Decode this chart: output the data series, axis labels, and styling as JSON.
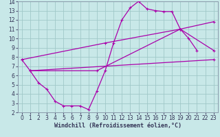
{
  "xlabel": "Windchill (Refroidissement éolien,°C)",
  "xlim": [
    -0.5,
    23.5
  ],
  "ylim": [
    2,
    14
  ],
  "xticks": [
    0,
    1,
    2,
    3,
    4,
    5,
    6,
    7,
    8,
    9,
    10,
    11,
    12,
    13,
    14,
    15,
    16,
    17,
    18,
    19,
    20,
    21,
    22,
    23
  ],
  "yticks": [
    2,
    3,
    4,
    5,
    6,
    7,
    8,
    9,
    10,
    11,
    12,
    13,
    14
  ],
  "bg_color": "#c8e8e8",
  "grid_color": "#a0c8c8",
  "line_color": "#aa00aa",
  "line1_x": [
    0,
    1,
    2,
    3,
    4,
    5,
    6,
    7,
    8,
    9,
    10,
    11,
    12,
    13,
    14,
    15,
    16,
    17,
    18,
    19,
    20,
    21
  ],
  "line1_y": [
    7.7,
    6.5,
    5.2,
    4.5,
    3.2,
    2.7,
    2.7,
    2.7,
    2.3,
    4.3,
    6.5,
    9.5,
    12.0,
    13.3,
    14.0,
    13.2,
    13.0,
    12.9,
    12.9,
    11.0,
    10.0,
    8.7
  ],
  "line2_x": [
    0,
    10,
    19,
    23
  ],
  "line2_y": [
    7.7,
    9.5,
    11.0,
    8.7
  ],
  "line3_x": [
    1,
    23
  ],
  "line3_y": [
    6.5,
    7.7
  ],
  "line4_x": [
    1,
    9,
    19,
    23
  ],
  "line4_y": [
    6.5,
    6.5,
    11.0,
    11.8
  ],
  "xlabel_fontsize": 6,
  "tick_fontsize": 5.5
}
